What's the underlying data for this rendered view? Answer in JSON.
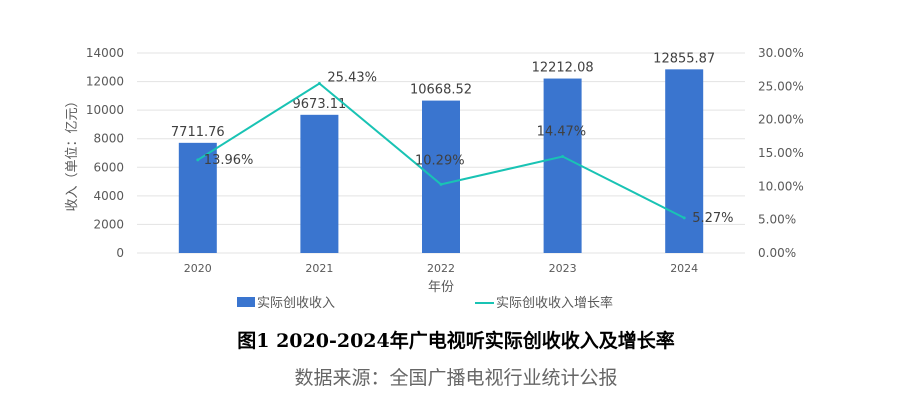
{
  "chart_data": {
    "type": "bar+line",
    "categories": [
      "2020",
      "2021",
      "2022",
      "2023",
      "2024"
    ],
    "series": [
      {
        "name": "实际创收收入",
        "type": "bar",
        "axis": "left",
        "values": [
          7711.76,
          9673.11,
          10668.52,
          12212.08,
          12855.87
        ],
        "labels": [
          "7711.76",
          "9673.11",
          "10668.52",
          "12212.08",
          "12855.87"
        ],
        "color": "#3A75CF"
      },
      {
        "name": "实际创收收入增长率",
        "type": "line",
        "axis": "right",
        "values": [
          13.96,
          25.43,
          10.29,
          14.47,
          5.27
        ],
        "labels": [
          "13.96%",
          "25.43%",
          "10.29%",
          "14.47%",
          "5.27%"
        ],
        "color": "#19C3B4"
      }
    ],
    "xlabel": "年份",
    "ylabel": "收入（单位：亿元）",
    "ylim": [
      0,
      14000
    ],
    "yticks": [
      "0",
      "2000",
      "4000",
      "6000",
      "8000",
      "10000",
      "12000",
      "14000"
    ],
    "y2lim": [
      0,
      30
    ],
    "y2ticks": [
      "0.00%",
      "5.00%",
      "10.00%",
      "15.00%",
      "20.00%",
      "25.00%",
      "30.00%"
    ],
    "grid": true,
    "legend": "bottom"
  },
  "caption": "图1 2020-2024年广电视听实际创收收入及增长率",
  "source": "数据来源：全国广播电视行业统计公报"
}
